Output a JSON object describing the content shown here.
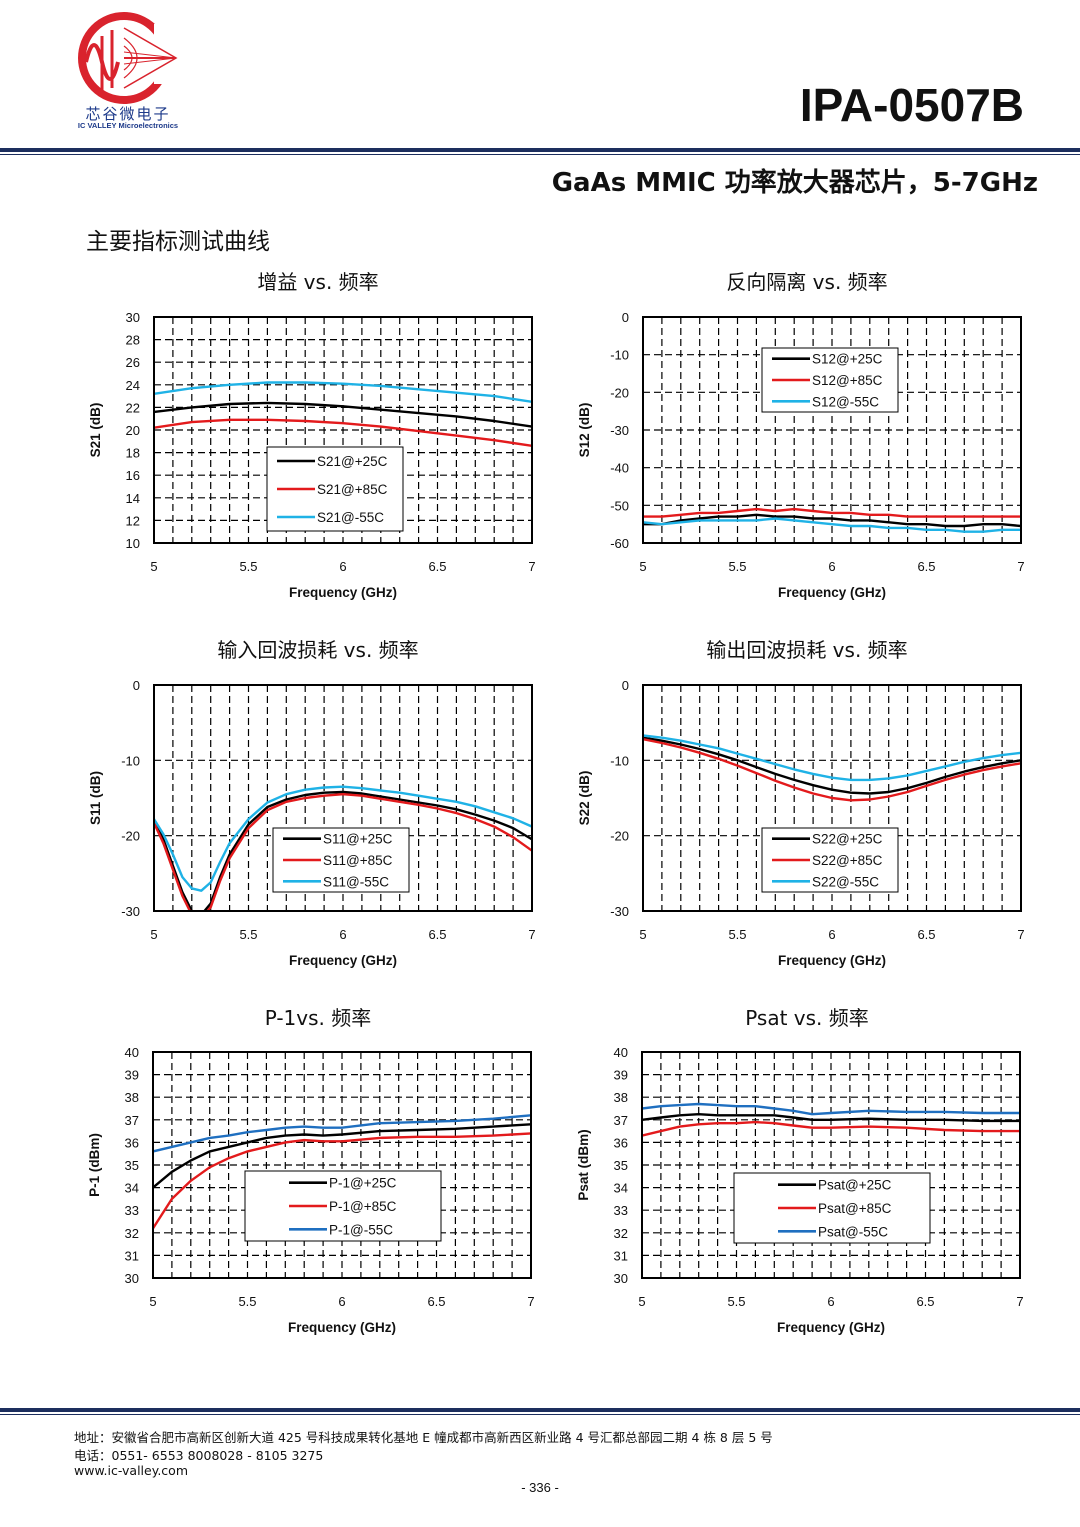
{
  "header": {
    "logo_cn": "芯谷微电子",
    "logo_en": "IC VALLEY Microelectronics",
    "part_no": "IPA-0507B",
    "subtitle": "GaAs MMIC 功率放大器芯片，5-7GHz",
    "section_title": "主要指标测试曲线"
  },
  "colors": {
    "black": "#000000",
    "red": "#e31a1c",
    "cyan": "#1fb2e6",
    "blue": "#1f6fc0",
    "rule": "#1d2f5e"
  },
  "chart_data": [
    {
      "id": "s21",
      "type": "line",
      "title": "增益 vs. 频率",
      "xlabel": "Frequency (GHz)",
      "ylabel": "S21 (dB)",
      "xlim": [
        5,
        7
      ],
      "ylim": [
        10,
        30
      ],
      "ystep": 2,
      "xticks": [
        "5",
        "5.5",
        "6",
        "6.5",
        "7"
      ],
      "yticks": [
        "10",
        "12",
        "14",
        "16",
        "18",
        "20",
        "22",
        "24",
        "26",
        "28",
        "30"
      ],
      "grid": true,
      "legend_position": "center",
      "x": [
        5,
        5.2,
        5.4,
        5.6,
        5.8,
        6,
        6.2,
        6.4,
        6.6,
        6.8,
        7
      ],
      "series": [
        {
          "name": "S21@+25C",
          "color": "#000000",
          "values": [
            21.6,
            22.0,
            22.3,
            22.4,
            22.3,
            22.1,
            21.8,
            21.5,
            21.2,
            20.8,
            20.3
          ]
        },
        {
          "name": "S21@+85C",
          "color": "#e31a1c",
          "values": [
            20.2,
            20.7,
            20.9,
            20.9,
            20.8,
            20.6,
            20.3,
            19.9,
            19.5,
            19.1,
            18.6
          ]
        },
        {
          "name": "S21@-55C",
          "color": "#1fb2e6",
          "values": [
            23.2,
            23.7,
            24.0,
            24.2,
            24.2,
            24.1,
            23.9,
            23.6,
            23.3,
            23.0,
            22.5
          ]
        }
      ]
    },
    {
      "id": "s12",
      "type": "line",
      "title": "反向隔离 vs. 频率",
      "xlabel": "Frequency (GHz)",
      "ylabel": "S12 (dB)",
      "xlim": [
        5,
        7
      ],
      "ylim": [
        -60,
        0
      ],
      "ystep": 10,
      "xticks": [
        "5",
        "5.5",
        "6",
        "6.5",
        "7"
      ],
      "yticks": [
        "-60",
        "-50",
        "-40",
        "-30",
        "-20",
        "-10",
        "0"
      ],
      "grid": true,
      "legend_position": "top-center",
      "x": [
        5,
        5.1,
        5.2,
        5.3,
        5.4,
        5.5,
        5.6,
        5.7,
        5.8,
        5.9,
        6,
        6.1,
        6.2,
        6.3,
        6.4,
        6.5,
        6.6,
        6.7,
        6.8,
        6.9,
        7
      ],
      "series": [
        {
          "name": "S12@+25C",
          "color": "#000000",
          "values": [
            -55,
            -55,
            -54,
            -53.5,
            -53,
            -53,
            -52.5,
            -53,
            -53,
            -53.5,
            -53.5,
            -54,
            -54,
            -54.5,
            -55,
            -55,
            -55.5,
            -55.5,
            -55,
            -55,
            -55.5
          ]
        },
        {
          "name": "S12@+85C",
          "color": "#e31a1c",
          "values": [
            -53,
            -53,
            -52.5,
            -52,
            -52,
            -51.5,
            -51,
            -51.5,
            -51,
            -51.5,
            -52,
            -52,
            -52.5,
            -52.5,
            -53,
            -53,
            -53,
            -53,
            -53,
            -53,
            -53
          ]
        },
        {
          "name": "S12@-55C",
          "color": "#1fb2e6",
          "values": [
            -54.5,
            -55,
            -54.5,
            -54,
            -54,
            -54,
            -54,
            -53.5,
            -54,
            -54.5,
            -55,
            -55.5,
            -55.5,
            -56,
            -56,
            -56.5,
            -56.5,
            -57,
            -57,
            -56.5,
            -56.5
          ]
        }
      ]
    },
    {
      "id": "s11",
      "type": "line",
      "title": "输入回波损耗 vs. 频率",
      "xlabel": "Frequency (GHz)",
      "ylabel": "S11 (dB)",
      "xlim": [
        5,
        7
      ],
      "ylim": [
        -30,
        0
      ],
      "ystep": 10,
      "xticks": [
        "5",
        "5.5",
        "6",
        "6.5",
        "7"
      ],
      "yticks": [
        "-30",
        "-20",
        "-10",
        "0"
      ],
      "grid": true,
      "legend_position": "bottom-center",
      "x": [
        5,
        5.05,
        5.1,
        5.15,
        5.2,
        5.25,
        5.3,
        5.35,
        5.4,
        5.5,
        5.6,
        5.7,
        5.8,
        5.9,
        6,
        6.1,
        6.2,
        6.3,
        6.4,
        6.5,
        6.6,
        6.7,
        6.8,
        6.9,
        7
      ],
      "series": [
        {
          "name": "S11@+25C",
          "color": "#000000",
          "values": [
            -18,
            -20.5,
            -24,
            -27.5,
            -30,
            -30.5,
            -29,
            -25.5,
            -22.5,
            -18.5,
            -16.2,
            -15.2,
            -14.6,
            -14.3,
            -14.2,
            -14.4,
            -14.8,
            -15.2,
            -15.6,
            -16,
            -16.5,
            -17.2,
            -18,
            -19,
            -20.5
          ]
        },
        {
          "name": "S11@+85C",
          "color": "#e31a1c",
          "values": [
            -18.3,
            -21,
            -24.5,
            -28,
            -30.5,
            -31,
            -29.5,
            -26,
            -23,
            -19,
            -16.6,
            -15.5,
            -15,
            -14.7,
            -14.5,
            -14.7,
            -15.1,
            -15.5,
            -15.9,
            -16.4,
            -17,
            -17.8,
            -18.8,
            -20.2,
            -22
          ]
        },
        {
          "name": "S11@-55C",
          "color": "#1fb2e6",
          "values": [
            -17.8,
            -19.8,
            -22.5,
            -25.5,
            -27,
            -27.3,
            -26.2,
            -23.5,
            -21,
            -17.8,
            -15.6,
            -14.5,
            -13.9,
            -13.6,
            -13.5,
            -13.7,
            -14,
            -14.3,
            -14.7,
            -15.1,
            -15.5,
            -16.1,
            -16.9,
            -17.7,
            -18.8
          ]
        }
      ]
    },
    {
      "id": "s22",
      "type": "line",
      "title": "输出回波损耗 vs. 频率",
      "xlabel": "Frequency (GHz)",
      "ylabel": "S22 (dB)",
      "xlim": [
        5,
        7
      ],
      "ylim": [
        -30,
        0
      ],
      "ystep": 10,
      "xticks": [
        "5",
        "5.5",
        "6",
        "6.5",
        "7"
      ],
      "yticks": [
        "-30",
        "-20",
        "-10",
        "0"
      ],
      "grid": true,
      "legend_position": "bottom-center",
      "x": [
        5,
        5.1,
        5.2,
        5.3,
        5.4,
        5.5,
        5.6,
        5.7,
        5.8,
        5.9,
        6,
        6.1,
        6.2,
        6.3,
        6.4,
        6.5,
        6.6,
        6.7,
        6.8,
        6.9,
        7
      ],
      "series": [
        {
          "name": "S22@+25C",
          "color": "#000000",
          "values": [
            -7,
            -7.4,
            -7.9,
            -8.5,
            -9.2,
            -10,
            -10.9,
            -11.8,
            -12.6,
            -13.3,
            -13.9,
            -14.3,
            -14.4,
            -14.2,
            -13.7,
            -13,
            -12.2,
            -11.5,
            -10.9,
            -10.4,
            -10
          ]
        },
        {
          "name": "S22@+85C",
          "color": "#e31a1c",
          "values": [
            -7.2,
            -7.7,
            -8.3,
            -9,
            -9.8,
            -10.7,
            -11.7,
            -12.7,
            -13.6,
            -14.4,
            -15,
            -15.3,
            -15.2,
            -14.8,
            -14.2,
            -13.4,
            -12.6,
            -11.9,
            -11.3,
            -10.8,
            -10.4
          ]
        },
        {
          "name": "S22@-55C",
          "color": "#1fb2e6",
          "values": [
            -6.7,
            -7,
            -7.4,
            -7.9,
            -8.4,
            -9.1,
            -9.8,
            -10.5,
            -11.2,
            -11.8,
            -12.3,
            -12.6,
            -12.6,
            -12.4,
            -12,
            -11.4,
            -10.8,
            -10.2,
            -9.7,
            -9.3,
            -9
          ]
        }
      ]
    },
    {
      "id": "p1",
      "type": "line",
      "title": "P-1vs. 频率",
      "xlabel": "Frequency (GHz)",
      "ylabel": "P-1 (dBm)",
      "xlim": [
        5,
        7
      ],
      "ylim": [
        30,
        40
      ],
      "ystep": 1,
      "xticks": [
        "5",
        "5.5",
        "6",
        "6.5",
        "7"
      ],
      "yticks": [
        "30",
        "31",
        "32",
        "33",
        "34",
        "35",
        "36",
        "37",
        "38",
        "39",
        "40"
      ],
      "grid": true,
      "legend_position": "bottom-center",
      "x": [
        5,
        5.1,
        5.2,
        5.3,
        5.4,
        5.5,
        5.6,
        5.7,
        5.8,
        5.9,
        6,
        6.2,
        6.4,
        6.6,
        6.8,
        7
      ],
      "series": [
        {
          "name": "P-1@+25C",
          "color": "#000000",
          "values": [
            34,
            34.7,
            35.2,
            35.6,
            35.8,
            36,
            36.2,
            36.3,
            36.35,
            36.3,
            36.35,
            36.5,
            36.55,
            36.6,
            36.7,
            36.8
          ]
        },
        {
          "name": "P-1@+85C",
          "color": "#e31a1c",
          "values": [
            32.2,
            33.5,
            34.3,
            34.9,
            35.3,
            35.6,
            35.8,
            36,
            36.1,
            36.05,
            36.05,
            36.2,
            36.25,
            36.25,
            36.3,
            36.4
          ]
        },
        {
          "name": "P-1@-55C",
          "color": "#1f6fc0",
          "values": [
            35.6,
            35.8,
            36,
            36.2,
            36.3,
            36.45,
            36.55,
            36.65,
            36.7,
            36.65,
            36.65,
            36.85,
            36.9,
            36.95,
            37.05,
            37.2
          ]
        }
      ]
    },
    {
      "id": "psat",
      "type": "line",
      "title": "Psat vs. 频率",
      "xlabel": "Frequency (GHz)",
      "ylabel": "Psat (dBm)",
      "xlim": [
        5,
        7
      ],
      "ylim": [
        30,
        40
      ],
      "ystep": 1,
      "xticks": [
        "5",
        "5.5",
        "6",
        "6.5",
        "7"
      ],
      "yticks": [
        "30",
        "31",
        "32",
        "33",
        "34",
        "35",
        "36",
        "37",
        "38",
        "39",
        "40"
      ],
      "grid": true,
      "legend_position": "bottom-center",
      "x": [
        5,
        5.1,
        5.2,
        5.3,
        5.4,
        5.5,
        5.6,
        5.7,
        5.8,
        5.9,
        6,
        6.2,
        6.4,
        6.6,
        6.8,
        7
      ],
      "series": [
        {
          "name": "Psat@+25C",
          "color": "#000000",
          "values": [
            37,
            37.1,
            37.2,
            37.25,
            37.2,
            37.2,
            37.2,
            37.2,
            37.1,
            37,
            37,
            37.05,
            37,
            37,
            36.95,
            36.95
          ]
        },
        {
          "name": "Psat@+85C",
          "color": "#e31a1c",
          "values": [
            36.3,
            36.5,
            36.7,
            36.8,
            36.85,
            36.85,
            36.9,
            36.85,
            36.75,
            36.65,
            36.65,
            36.7,
            36.65,
            36.55,
            36.5,
            36.5
          ]
        },
        {
          "name": "Psat@-55C",
          "color": "#1f6fc0",
          "values": [
            37.5,
            37.6,
            37.65,
            37.7,
            37.65,
            37.6,
            37.6,
            37.5,
            37.4,
            37.25,
            37.3,
            37.4,
            37.35,
            37.35,
            37.3,
            37.3
          ]
        }
      ]
    }
  ],
  "footer": {
    "address": "地址：安徽省合肥市高新区创新大道 425 号科技成果转化基地 E 幢成都市高新西区新业路 4 号汇都总部园二期 4 栋 8 层 5 号",
    "phone": "电话：0551- 6553 8008028 - 8105 3275",
    "website": "www.ic-valley.com",
    "page": "- 336 -"
  }
}
